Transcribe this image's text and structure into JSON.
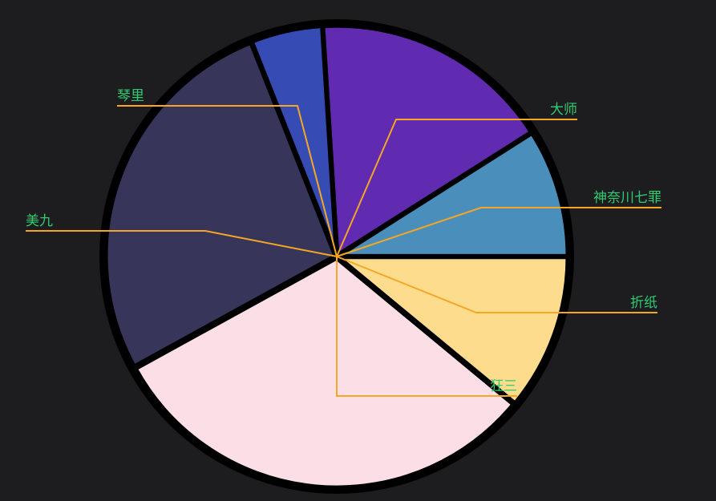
{
  "chart_data": {
    "type": "pie",
    "slices": [
      {
        "label": "神奈川七罪",
        "value": 9,
        "color": "#4a8ebb"
      },
      {
        "label": "大师",
        "value": 17,
        "color": "#602bb0"
      },
      {
        "label": "琴里",
        "value": 5,
        "color": "#364bb4"
      },
      {
        "label": "美九",
        "value": 27,
        "color": "#37355a"
      },
      {
        "label": "狂三",
        "value": 31,
        "color": "#fcdfe6"
      },
      {
        "label": "折纸",
        "value": 11,
        "color": "#fddc8e"
      }
    ],
    "label_color": "#2ecc71",
    "leader_color": "#f5a623",
    "outline_color": "#000000",
    "background": "#1d1c1f"
  }
}
